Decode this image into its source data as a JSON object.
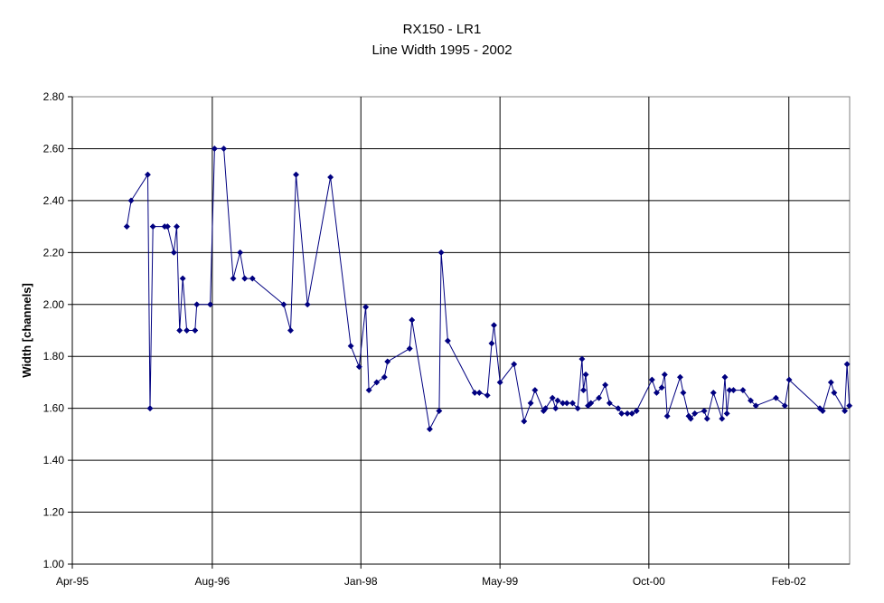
{
  "chart_data": {
    "type": "line",
    "title": "RX150 - LR1",
    "subtitle": "Line Width 1995 - 2002",
    "xlabel": "",
    "ylabel": "Width [channels]",
    "x_ticks": [
      {
        "date": "1995-04-01",
        "label": "Apr-95"
      },
      {
        "date": "1996-08-01",
        "label": "Aug-96"
      },
      {
        "date": "1998-01-01",
        "label": "Jan-98"
      },
      {
        "date": "1999-05-01",
        "label": "May-99"
      },
      {
        "date": "2000-10-01",
        "label": "Oct-00"
      },
      {
        "date": "2002-02-01",
        "label": "Feb-02"
      }
    ],
    "xlim": [
      "1995-04-01",
      "2002-09-01"
    ],
    "ylim": [
      1.0,
      2.8
    ],
    "y_ticks": [
      "1.00",
      "1.20",
      "1.40",
      "1.60",
      "1.80",
      "2.00",
      "2.20",
      "2.40",
      "2.60",
      "2.80"
    ],
    "grid": true,
    "legend": "none",
    "series": [
      {
        "color": "#000080",
        "marker": "diamond",
        "points": [
          [
            "1995-10-08",
            2.3
          ],
          [
            "1995-10-23",
            2.4
          ],
          [
            "1995-12-20",
            2.5
          ],
          [
            "1995-12-28",
            1.6
          ],
          [
            "1996-01-07",
            2.3
          ],
          [
            "1996-02-17",
            2.3
          ],
          [
            "1996-02-27",
            2.3
          ],
          [
            "1996-03-20",
            2.2
          ],
          [
            "1996-03-30",
            2.3
          ],
          [
            "1996-04-09",
            1.9
          ],
          [
            "1996-04-20",
            2.1
          ],
          [
            "1996-05-04",
            1.9
          ],
          [
            "1996-06-02",
            1.9
          ],
          [
            "1996-06-08",
            2.0
          ],
          [
            "1996-07-25",
            2.0
          ],
          [
            "1996-08-09",
            2.6
          ],
          [
            "1996-09-10",
            2.6
          ],
          [
            "1996-10-13",
            2.1
          ],
          [
            "1996-11-06",
            2.2
          ],
          [
            "1996-11-22",
            2.1
          ],
          [
            "1996-12-19",
            2.1
          ],
          [
            "1997-04-07",
            2.0
          ],
          [
            "1997-05-01",
            1.9
          ],
          [
            "1997-05-20",
            2.5
          ],
          [
            "1997-06-29",
            2.0
          ],
          [
            "1997-09-17",
            2.49
          ],
          [
            "1997-11-27",
            1.84
          ],
          [
            "1997-12-26",
            1.76
          ],
          [
            "1998-01-18",
            1.99
          ],
          [
            "1998-01-29",
            1.67
          ],
          [
            "1998-02-25",
            1.7
          ],
          [
            "1998-03-24",
            1.72
          ],
          [
            "1998-04-04",
            1.78
          ],
          [
            "1998-06-20",
            1.83
          ],
          [
            "1998-06-28",
            1.94
          ],
          [
            "1998-08-29",
            1.52
          ],
          [
            "1998-10-01",
            1.59
          ],
          [
            "1998-10-08",
            2.2
          ],
          [
            "1998-10-31",
            1.86
          ],
          [
            "1999-02-02",
            1.66
          ],
          [
            "1999-02-18",
            1.66
          ],
          [
            "1999-03-18",
            1.65
          ],
          [
            "1999-04-02",
            1.85
          ],
          [
            "1999-04-10",
            1.92
          ],
          [
            "1999-05-01",
            1.7
          ],
          [
            "1999-06-19",
            1.77
          ],
          [
            "1999-07-24",
            1.55
          ],
          [
            "1999-08-16",
            1.62
          ],
          [
            "1999-08-31",
            1.67
          ],
          [
            "1999-09-30",
            1.59
          ],
          [
            "1999-10-07",
            1.6
          ],
          [
            "1999-10-31",
            1.64
          ],
          [
            "1999-11-11",
            1.6
          ],
          [
            "1999-11-18",
            1.63
          ],
          [
            "1999-12-06",
            1.62
          ],
          [
            "1999-12-20",
            1.62
          ],
          [
            "2000-01-09",
            1.62
          ],
          [
            "2000-01-27",
            1.6
          ],
          [
            "2000-02-11",
            1.79
          ],
          [
            "2000-02-16",
            1.67
          ],
          [
            "2000-02-24",
            1.73
          ],
          [
            "2000-03-03",
            1.61
          ],
          [
            "2000-03-13",
            1.62
          ],
          [
            "2000-04-10",
            1.64
          ],
          [
            "2000-05-02",
            1.69
          ],
          [
            "2000-05-17",
            1.62
          ],
          [
            "2000-06-16",
            1.6
          ],
          [
            "2000-06-28",
            1.58
          ],
          [
            "2000-07-18",
            1.58
          ],
          [
            "2000-08-03",
            1.58
          ],
          [
            "2000-08-19",
            1.59
          ],
          [
            "2000-10-12",
            1.71
          ],
          [
            "2000-10-28",
            1.66
          ],
          [
            "2000-11-15",
            1.68
          ],
          [
            "2000-11-25",
            1.73
          ],
          [
            "2000-12-04",
            1.57
          ],
          [
            "2001-01-18",
            1.72
          ],
          [
            "2001-01-29",
            1.66
          ],
          [
            "2001-02-17",
            1.57
          ],
          [
            "2001-02-24",
            1.56
          ],
          [
            "2001-03-10",
            1.58
          ],
          [
            "2001-04-12",
            1.59
          ],
          [
            "2001-04-22",
            1.56
          ],
          [
            "2001-05-14",
            1.66
          ],
          [
            "2001-06-13",
            1.56
          ],
          [
            "2001-06-23",
            1.72
          ],
          [
            "2001-06-30",
            1.58
          ],
          [
            "2001-07-09",
            1.67
          ],
          [
            "2001-07-23",
            1.67
          ],
          [
            "2001-08-25",
            1.67
          ],
          [
            "2001-09-21",
            1.63
          ],
          [
            "2001-10-09",
            1.61
          ],
          [
            "2001-12-18",
            1.64
          ],
          [
            "2002-01-18",
            1.61
          ],
          [
            "2002-02-02",
            1.71
          ],
          [
            "2002-05-20",
            1.6
          ],
          [
            "2002-05-30",
            1.59
          ],
          [
            "2002-06-28",
            1.7
          ],
          [
            "2002-07-09",
            1.66
          ],
          [
            "2002-08-15",
            1.59
          ],
          [
            "2002-08-23",
            1.77
          ],
          [
            "2002-08-31",
            1.61
          ]
        ]
      }
    ]
  }
}
